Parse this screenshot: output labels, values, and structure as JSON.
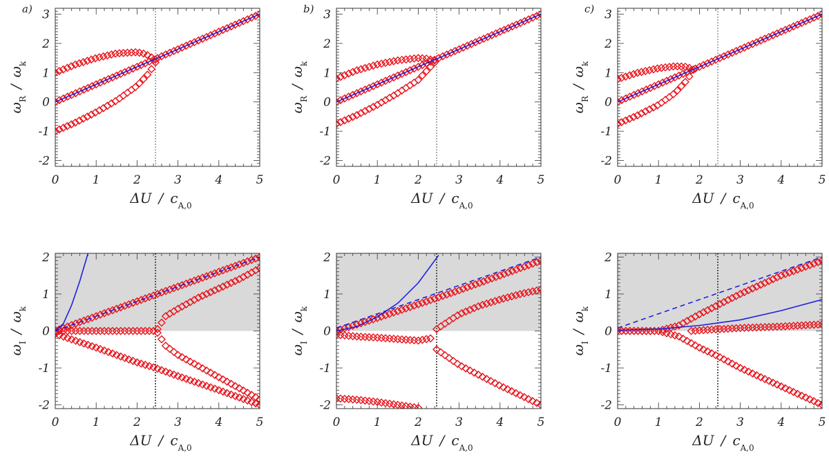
{
  "figure": {
    "panel_tags": [
      "a)",
      "b)",
      "c)"
    ]
  },
  "axis_text": {
    "x_main": "ΔU",
    "x_denom": "c",
    "x_sub": "A,0",
    "top_y_main": "ω",
    "top_y_sub": "R",
    "bottom_y_main": "ω",
    "bottom_y_sub": "I",
    "y_denom": "ω",
    "y_denom_sub": "k",
    "slash": "/"
  },
  "colors": {
    "marker": "#e8141c",
    "line": "#1f1fe0",
    "shade": "#d9d9d9",
    "vline": "#333333"
  },
  "chart_data": [
    {
      "panel": "a)",
      "row": "top",
      "type": "scatter",
      "xlim": [
        0,
        5
      ],
      "ylim": [
        -2.2,
        3.2
      ],
      "xticks": [
        0,
        1,
        2,
        3,
        4,
        5
      ],
      "yticks": [
        -2,
        -1,
        0,
        1,
        2,
        3
      ],
      "vline_x": 2.45,
      "shade": false,
      "marker_series": [
        {
          "x": [
            0,
            0.5,
            1,
            1.5,
            2.0,
            2.2,
            2.45
          ],
          "y": [
            1.0,
            1.28,
            1.5,
            1.66,
            1.7,
            1.64,
            1.45
          ]
        },
        {
          "x": [
            0,
            0.5,
            1,
            1.5,
            2.0,
            2.3,
            2.45
          ],
          "y": [
            -1.0,
            -0.7,
            -0.35,
            0.05,
            0.55,
            1.0,
            1.35
          ]
        },
        {
          "x": [
            0,
            1,
            2,
            3,
            4,
            5
          ],
          "y": [
            0,
            0.6,
            1.2,
            1.8,
            2.4,
            3.0
          ]
        }
      ],
      "line_series": [
        {
          "style": "solid",
          "x": [
            0,
            5
          ],
          "y": [
            0,
            3.0
          ]
        }
      ]
    },
    {
      "panel": "b)",
      "row": "top",
      "type": "scatter",
      "xlim": [
        0,
        5
      ],
      "ylim": [
        -2.2,
        3.2
      ],
      "xticks": [
        0,
        1,
        2,
        3,
        4,
        5
      ],
      "yticks": [
        -2,
        -1,
        0,
        1,
        2,
        3
      ],
      "vline_x": 2.45,
      "shade": false,
      "marker_series": [
        {
          "x": [
            0,
            0.5,
            1,
            1.5,
            2.0,
            2.2,
            2.4
          ],
          "y": [
            0.8,
            1.08,
            1.28,
            1.42,
            1.5,
            1.48,
            1.42
          ]
        },
        {
          "x": [
            0,
            0.5,
            1,
            1.5,
            2.0,
            2.2,
            2.4
          ],
          "y": [
            -0.75,
            -0.45,
            -0.1,
            0.3,
            0.75,
            1.05,
            1.35
          ]
        },
        {
          "x": [
            0,
            1,
            2,
            3,
            4,
            5
          ],
          "y": [
            0,
            0.6,
            1.2,
            1.8,
            2.4,
            3.0
          ]
        }
      ],
      "line_series": [
        {
          "style": "solid",
          "x": [
            0,
            5
          ],
          "y": [
            0,
            3.0
          ]
        }
      ]
    },
    {
      "panel": "c)",
      "row": "top",
      "type": "scatter",
      "xlim": [
        0,
        5
      ],
      "ylim": [
        -2.2,
        3.2
      ],
      "xticks": [
        0,
        1,
        2,
        3,
        4,
        5
      ],
      "yticks": [
        -2,
        -1,
        0,
        1,
        2,
        3
      ],
      "vline_x": 2.45,
      "shade": false,
      "marker_series": [
        {
          "x": [
            0,
            0.5,
            1,
            1.4,
            1.7,
            1.85
          ],
          "y": [
            0.78,
            1.0,
            1.15,
            1.22,
            1.2,
            1.1
          ]
        },
        {
          "x": [
            0,
            0.5,
            1,
            1.4,
            1.7,
            1.85
          ],
          "y": [
            -0.75,
            -0.45,
            -0.1,
            0.3,
            0.75,
            1.1
          ]
        },
        {
          "x": [
            0,
            1,
            2,
            3,
            4,
            5
          ],
          "y": [
            0,
            0.6,
            1.2,
            1.8,
            2.4,
            3.0
          ]
        }
      ],
      "line_series": [
        {
          "style": "solid",
          "x": [
            0,
            5
          ],
          "y": [
            0,
            3.0
          ]
        }
      ]
    },
    {
      "panel": "a)",
      "row": "bottom",
      "type": "scatter",
      "xlim": [
        0,
        5
      ],
      "ylim": [
        -2.1,
        2.1
      ],
      "xticks": [
        0,
        1,
        2,
        3,
        4,
        5
      ],
      "yticks": [
        -2,
        -1,
        0,
        1,
        2
      ],
      "vline_x": 2.45,
      "shade": true,
      "marker_series": [
        {
          "x": [
            0,
            1,
            2,
            3,
            4,
            5
          ],
          "y": [
            0,
            0.4,
            0.8,
            1.2,
            1.6,
            2.0
          ]
        },
        {
          "x": [
            0,
            0.5,
            1,
            1.5,
            2.0,
            2.4
          ],
          "y": [
            0,
            0,
            0,
            0,
            0,
            0
          ]
        },
        {
          "x": [
            2.5,
            2.7,
            3.0,
            3.5,
            4.0,
            4.5,
            5.0
          ],
          "y": [
            0.05,
            0.4,
            0.6,
            0.9,
            1.15,
            1.4,
            1.7
          ]
        },
        {
          "x": [
            2.5,
            2.7,
            3.0,
            3.5,
            4.0,
            4.5,
            5.0
          ],
          "y": [
            -0.05,
            -0.4,
            -0.65,
            -0.95,
            -1.25,
            -1.55,
            -1.85
          ]
        },
        {
          "x": [
            0,
            1,
            2,
            2.45,
            3,
            4,
            5
          ],
          "y": [
            -0.08,
            -0.45,
            -0.85,
            -1.0,
            -1.22,
            -1.6,
            -2.0
          ]
        }
      ],
      "line_series": [
        {
          "style": "solid",
          "x": [
            0,
            0.2,
            0.4,
            0.6,
            0.8
          ],
          "y": [
            0,
            0.2,
            0.7,
            1.35,
            2.1
          ]
        },
        {
          "style": "dashed",
          "x": [
            0,
            5
          ],
          "y": [
            0,
            2.0
          ]
        }
      ]
    },
    {
      "panel": "b)",
      "row": "bottom",
      "type": "scatter",
      "xlim": [
        0,
        5
      ],
      "ylim": [
        -2.1,
        2.1
      ],
      "xticks": [
        0,
        1,
        2,
        3,
        4,
        5
      ],
      "yticks": [
        -2,
        -1,
        0,
        1,
        2
      ],
      "vline_x": 2.45,
      "shade": true,
      "marker_series": [
        {
          "x": [
            0,
            1,
            2,
            3,
            4,
            5
          ],
          "y": [
            0,
            0.35,
            0.72,
            1.1,
            1.5,
            1.9
          ]
        },
        {
          "x": [
            0,
            0.5,
            1,
            1.5,
            2.0,
            2.3
          ],
          "y": [
            -0.1,
            -0.15,
            -0.18,
            -0.22,
            -0.26,
            -0.2
          ]
        },
        {
          "x": [
            2.45,
            3.0,
            3.5,
            4.0,
            4.5,
            5.0
          ],
          "y": [
            0.05,
            0.45,
            0.68,
            0.85,
            1.0,
            1.12
          ]
        },
        {
          "x": [
            2.45,
            3.0,
            3.5,
            4.0,
            4.5,
            5.0
          ],
          "y": [
            -0.5,
            -0.92,
            -1.2,
            -1.48,
            -1.74,
            -2.0
          ]
        },
        {
          "x": [
            0,
            0.5,
            1,
            1.5,
            2.0
          ],
          "y": [
            -1.82,
            -1.86,
            -1.92,
            -2.0,
            -2.08
          ]
        }
      ],
      "line_series": [
        {
          "style": "solid",
          "x": [
            0,
            0.5,
            1.0,
            1.5,
            2.0,
            2.5
          ],
          "y": [
            0,
            0.12,
            0.38,
            0.75,
            1.3,
            2.05
          ]
        },
        {
          "style": "dashed",
          "x": [
            0,
            5
          ],
          "y": [
            0.08,
            2.0
          ]
        }
      ]
    },
    {
      "panel": "c)",
      "row": "bottom",
      "type": "scatter",
      "xlim": [
        0,
        5
      ],
      "ylim": [
        -2.1,
        2.1
      ],
      "xticks": [
        0,
        1,
        2,
        3,
        4,
        5
      ],
      "yticks": [
        -2,
        -1,
        0,
        1,
        2
      ],
      "vline_x": 2.45,
      "shade": true,
      "marker_series": [
        {
          "x": [
            0,
            1.0,
            1.5,
            2.0,
            2.45,
            3.0,
            4.0,
            5.0
          ],
          "y": [
            0,
            0,
            0.15,
            0.45,
            0.7,
            1.0,
            1.5,
            1.9
          ]
        },
        {
          "x": [
            0,
            1.0,
            1.5,
            2.0,
            2.45,
            3.0,
            4.0,
            5.0
          ],
          "y": [
            0,
            0,
            -0.15,
            -0.45,
            -0.68,
            -1.0,
            -1.5,
            -2.0
          ]
        },
        {
          "x": [
            1.8,
            2.2,
            3.0,
            4.0,
            5.0
          ],
          "y": [
            0,
            0.03,
            0.08,
            0.12,
            0.18
          ]
        }
      ],
      "line_series": [
        {
          "style": "solid",
          "x": [
            0,
            1,
            2,
            3,
            4,
            5
          ],
          "y": [
            0.02,
            0.05,
            0.15,
            0.3,
            0.55,
            0.85
          ]
        },
        {
          "style": "dashed",
          "x": [
            0,
            5
          ],
          "y": [
            0.08,
            2.0
          ]
        }
      ]
    }
  ]
}
